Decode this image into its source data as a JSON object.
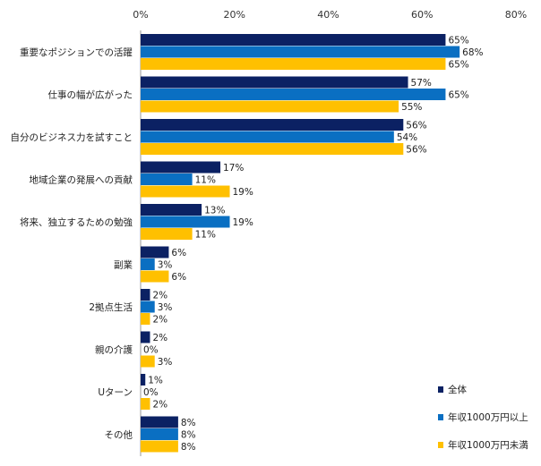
{
  "chart_data": {
    "type": "bar",
    "orientation": "horizontal",
    "categories": [
      "重要なポジションでの活躍",
      "仕事の幅が広がった",
      "自分のビジネス力を試すこと",
      "地域企業の発展への貢献",
      "将来、独立するための勉強",
      "副業",
      "2拠点生活",
      "親の介護",
      "Uターン",
      "その他"
    ],
    "series": [
      {
        "name": "全体",
        "color": "#0b2163",
        "values": [
          65,
          57,
          56,
          17,
          13,
          6,
          2,
          2,
          1,
          8
        ]
      },
      {
        "name": "年収1000万円以上",
        "color": "#0a6fc2",
        "values": [
          68,
          65,
          54,
          11,
          19,
          3,
          3,
          0,
          0,
          8
        ]
      },
      {
        "name": "年収1000万円未満",
        "color": "#ffc000",
        "values": [
          65,
          55,
          56,
          19,
          11,
          6,
          2,
          3,
          2,
          8
        ]
      }
    ],
    "xlim": [
      0,
      80
    ],
    "xticks": [
      0,
      20,
      40,
      60,
      80
    ],
    "tick_suffix": "%",
    "value_suffix": "%",
    "legend_position": "bottom-right",
    "grid": false
  }
}
